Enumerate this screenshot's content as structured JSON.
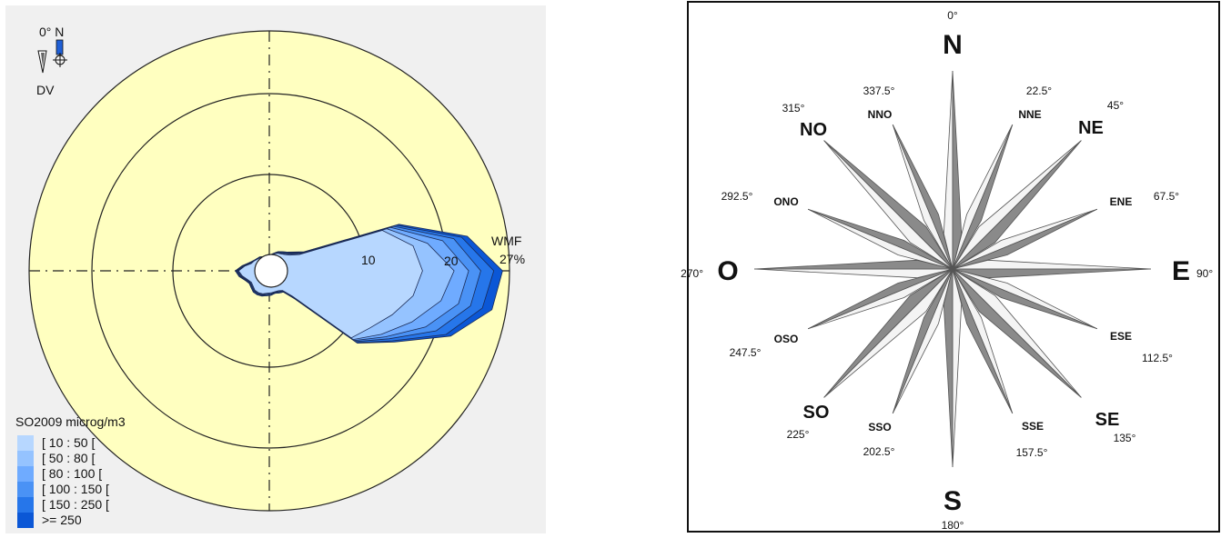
{
  "chart_data": [
    {
      "type": "polar",
      "title": "",
      "polar_axis": {
        "north_label": "0° N",
        "direction_label": "DV",
        "north_indicator_color": "#1f5fd6",
        "background_color": "#ffffc0",
        "panel_color": "#f0f0f0",
        "radial_labels": [
          "10",
          "20"
        ],
        "outer_label_top": "WMF",
        "outer_label_bottom": "27%"
      },
      "legend": {
        "title": "SO2009 microg/m3",
        "placement": "bottom-left",
        "entries": [
          {
            "label": "[ 10 : 50 [",
            "color": "#b7d7ff"
          },
          {
            "label": "[ 50 : 80 [",
            "color": "#95c3ff"
          },
          {
            "label": "[ 80 : 100 [",
            "color": "#6fabff"
          },
          {
            "label": "[ 100 : 150 [",
            "color": "#4a92f5"
          },
          {
            "label": "[ 150 : 250 [",
            "color": "#2676ea"
          },
          {
            "label": ">= 250",
            "color": "#0b57d6"
          }
        ]
      },
      "radial_max": 27,
      "radial_ticks": [
        10,
        20
      ],
      "angles_deg": [
        0,
        10,
        20,
        30,
        40,
        50,
        60,
        70,
        80,
        90,
        100,
        110,
        120,
        130,
        140,
        150,
        160,
        170,
        180,
        190,
        200,
        210,
        220,
        230,
        240,
        250,
        260,
        270,
        280,
        290,
        300,
        310,
        320,
        330,
        340,
        350
      ],
      "series": [
        {
          "name": "[ 10 : 50 [",
          "values": [
            0,
            0.1,
            0.3,
            0.4,
            0.6,
            1,
            2,
            12.6,
            15.8,
            16.7,
            15.8,
            13.9,
            12.1,
            10.9,
            2.1,
            0.8,
            0.6,
            0.6,
            0.7,
            0.8,
            1,
            1.1,
            1.1,
            0.9,
            0.8,
            1.1,
            1.6,
            2,
            1.3,
            0.6,
            0.4,
            0.2,
            0.1,
            0,
            0,
            0
          ]
        },
        {
          "name": "[ 50 : 80 [",
          "values": [
            0,
            0.1,
            0.3,
            0.5,
            0.7,
            1.2,
            2.2,
            13.2,
            17.6,
            20.6,
            19.3,
            16.5,
            13.7,
            11.2,
            2.2,
            0.8,
            0.7,
            0.6,
            0.8,
            0.9,
            1.1,
            1.2,
            1.2,
            1,
            0.9,
            1.2,
            1.7,
            2.1,
            1.4,
            0.7,
            0.4,
            0.2,
            0.1,
            0,
            0,
            0
          ]
        },
        {
          "name": "[ 80 : 100 [",
          "values": [
            0,
            0.1,
            0.4,
            0.5,
            0.8,
            1.3,
            2.4,
            13.7,
            19.5,
            22.4,
            21.5,
            18.3,
            14.3,
            11.4,
            2.3,
            0.9,
            0.7,
            0.7,
            0.8,
            0.9,
            1.1,
            1.2,
            1.2,
            1,
            0.9,
            1.2,
            1.8,
            2.2,
            1.4,
            0.7,
            0.4,
            0.3,
            0.1,
            0,
            0,
            0
          ]
        },
        {
          "name": "[ 100 : 150 [",
          "values": [
            0,
            0.1,
            0.4,
            0.6,
            0.9,
            1.4,
            2.5,
            14.1,
            20.9,
            23.9,
            23,
            19.7,
            14.8,
            11.6,
            2.4,
            0.9,
            0.8,
            0.7,
            0.9,
            1,
            1.2,
            1.3,
            1.3,
            1.1,
            1,
            1.3,
            1.9,
            2.3,
            1.5,
            0.8,
            0.5,
            0.3,
            0.1,
            0,
            0,
            0
          ]
        },
        {
          "name": "[ 150 : 250 [",
          "values": [
            0,
            0.2,
            0.5,
            0.7,
            1,
            1.5,
            2.6,
            14.5,
            21.9,
            25.5,
            24.5,
            21,
            15.3,
            11.8,
            2.5,
            1,
            0.9,
            0.8,
            1,
            1.1,
            1.2,
            1.4,
            1.4,
            1.2,
            1,
            1.4,
            2,
            2.4,
            1.6,
            0.8,
            0.5,
            0.3,
            0.2,
            0,
            0,
            0
          ]
        },
        {
          "name": ">= 250",
          "values": [
            0,
            0.2,
            0.5,
            0.7,
            1,
            1.6,
            2.7,
            14.8,
            22.6,
            26.6,
            25.7,
            21.6,
            15.6,
            11.9,
            2.5,
            1,
            0.9,
            0.8,
            1,
            1.1,
            1.3,
            1.4,
            1.4,
            1.2,
            1.1,
            1.4,
            2,
            2.4,
            1.6,
            0.9,
            0.5,
            0.3,
            0.2,
            0,
            0,
            0
          ]
        }
      ]
    },
    {
      "type": "diagram",
      "title": "",
      "cardinal": [
        {
          "abbr": "N",
          "deg": "0°"
        },
        {
          "abbr": "E",
          "deg": "90°"
        },
        {
          "abbr": "S",
          "deg": "180°"
        },
        {
          "abbr": "O",
          "deg": "270°"
        }
      ],
      "intercardinal": [
        {
          "abbr": "NE",
          "deg": "45°"
        },
        {
          "abbr": "SE",
          "deg": "135°"
        },
        {
          "abbr": "SO",
          "deg": "225°"
        },
        {
          "abbr": "NO",
          "deg": "315°"
        }
      ],
      "secondary": [
        {
          "abbr": "NNE",
          "deg": "22.5°"
        },
        {
          "abbr": "ENE",
          "deg": "67.5°"
        },
        {
          "abbr": "ESE",
          "deg": "112.5°"
        },
        {
          "abbr": "SSE",
          "deg": "157.5°"
        },
        {
          "abbr": "SSO",
          "deg": "202.5°"
        },
        {
          "abbr": "OSO",
          "deg": "247.5°"
        },
        {
          "abbr": "ONO",
          "deg": "292.5°"
        },
        {
          "abbr": "NNO",
          "deg": "337.5°"
        }
      ],
      "colors": {
        "light": "#f4f4f4",
        "dark": "#8a8a8a",
        "stroke": "#555555",
        "frame": "#111111"
      }
    }
  ]
}
